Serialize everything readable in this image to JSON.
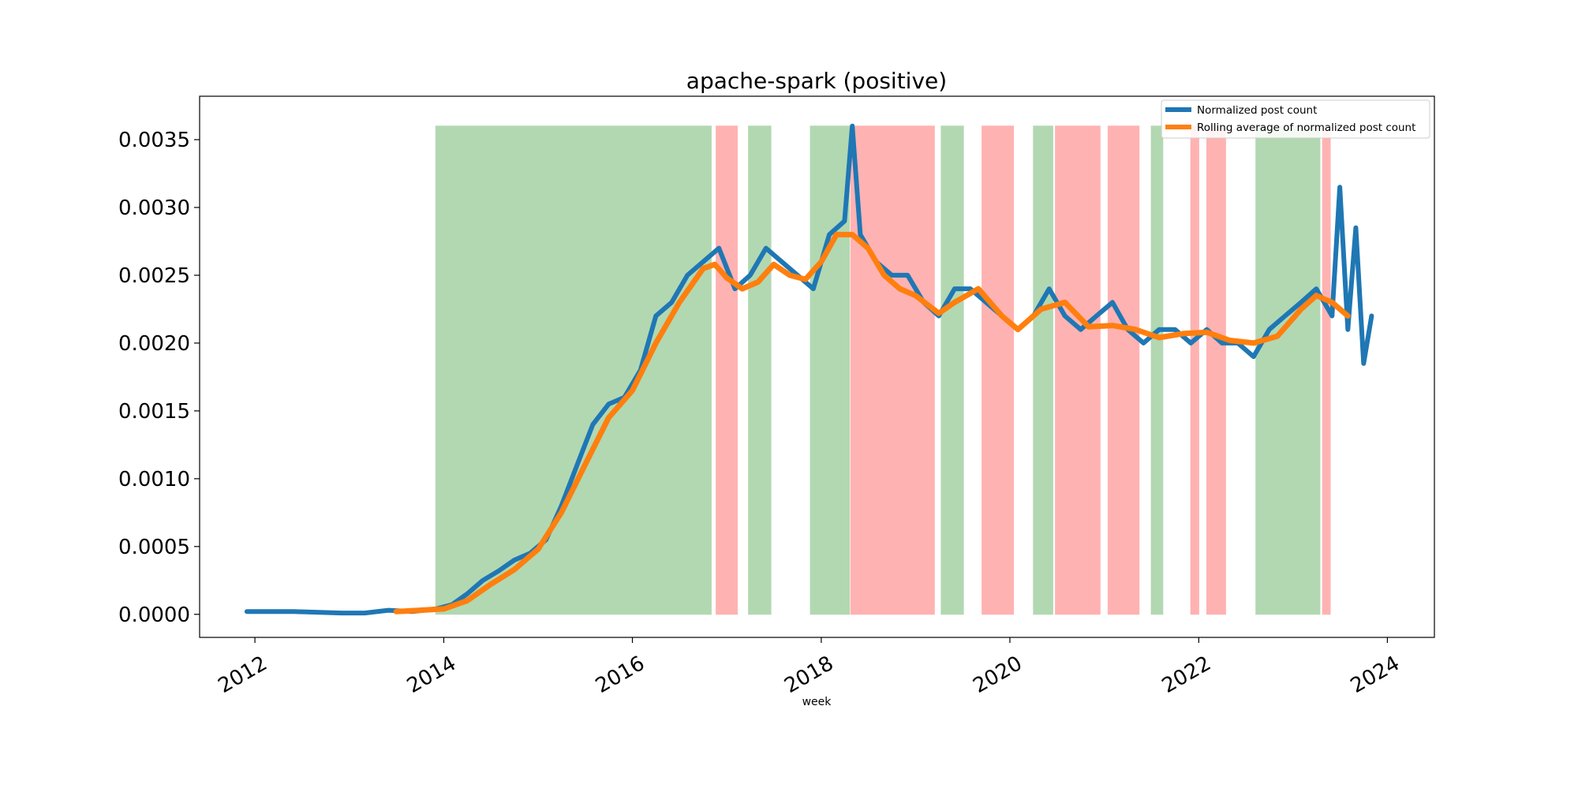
{
  "chart_data": {
    "type": "line",
    "title": "apache-spark (positive)",
    "xlabel": "week",
    "ylabel": "",
    "xlim": [
      "2011-06-01",
      "2024-07-01"
    ],
    "ylim": [
      -0.00017,
      0.00382
    ],
    "x_ticks": [
      "2012",
      "2014",
      "2016",
      "2018",
      "2020",
      "2022",
      "2024"
    ],
    "y_ticks": [
      "0.0000",
      "0.0005",
      "0.0010",
      "0.0015",
      "0.0020",
      "0.0025",
      "0.0030",
      "0.0035"
    ],
    "grid": false,
    "legend_position": "top-right",
    "series": [
      {
        "name": "Normalized post count",
        "color": "#1f77b4",
        "points": [
          [
            "2011-12-01",
            2e-05
          ],
          [
            "2012-06-01",
            2e-05
          ],
          [
            "2012-12-01",
            1e-05
          ],
          [
            "2013-03-01",
            1e-05
          ],
          [
            "2013-06-01",
            3e-05
          ],
          [
            "2013-09-01",
            2e-05
          ],
          [
            "2013-12-01",
            4e-05
          ],
          [
            "2014-02-01",
            7e-05
          ],
          [
            "2014-04-01",
            0.00015
          ],
          [
            "2014-06-01",
            0.00025
          ],
          [
            "2014-08-01",
            0.00032
          ],
          [
            "2014-10-01",
            0.0004
          ],
          [
            "2014-12-01",
            0.00045
          ],
          [
            "2015-02-01",
            0.00055
          ],
          [
            "2015-04-01",
            0.0008
          ],
          [
            "2015-06-01",
            0.0011
          ],
          [
            "2015-08-01",
            0.0014
          ],
          [
            "2015-10-01",
            0.00155
          ],
          [
            "2015-12-01",
            0.0016
          ],
          [
            "2016-02-01",
            0.0018
          ],
          [
            "2016-04-01",
            0.0022
          ],
          [
            "2016-06-01",
            0.0023
          ],
          [
            "2016-08-01",
            0.0025
          ],
          [
            "2016-10-01",
            0.0026
          ],
          [
            "2016-12-01",
            0.0027
          ],
          [
            "2017-02-01",
            0.0024
          ],
          [
            "2017-04-01",
            0.0025
          ],
          [
            "2017-06-01",
            0.0027
          ],
          [
            "2017-08-01",
            0.0026
          ],
          [
            "2017-10-01",
            0.0025
          ],
          [
            "2017-12-01",
            0.0024
          ],
          [
            "2018-02-01",
            0.0028
          ],
          [
            "2018-04-01",
            0.0029
          ],
          [
            "2018-05-01",
            0.0036
          ],
          [
            "2018-06-01",
            0.0028
          ],
          [
            "2018-08-01",
            0.0026
          ],
          [
            "2018-10-01",
            0.0025
          ],
          [
            "2018-12-01",
            0.0025
          ],
          [
            "2019-02-01",
            0.0023
          ],
          [
            "2019-04-01",
            0.0022
          ],
          [
            "2019-06-01",
            0.0024
          ],
          [
            "2019-08-01",
            0.0024
          ],
          [
            "2019-10-01",
            0.0023
          ],
          [
            "2019-12-01",
            0.0022
          ],
          [
            "2020-02-01",
            0.0021
          ],
          [
            "2020-04-01",
            0.0022
          ],
          [
            "2020-06-01",
            0.0024
          ],
          [
            "2020-08-01",
            0.0022
          ],
          [
            "2020-10-01",
            0.0021
          ],
          [
            "2020-12-01",
            0.0022
          ],
          [
            "2021-02-01",
            0.0023
          ],
          [
            "2021-04-01",
            0.0021
          ],
          [
            "2021-06-01",
            0.002
          ],
          [
            "2021-08-01",
            0.0021
          ],
          [
            "2021-10-01",
            0.0021
          ],
          [
            "2021-12-01",
            0.002
          ],
          [
            "2022-02-01",
            0.0021
          ],
          [
            "2022-04-01",
            0.002
          ],
          [
            "2022-06-01",
            0.002
          ],
          [
            "2022-08-01",
            0.0019
          ],
          [
            "2022-10-01",
            0.0021
          ],
          [
            "2022-12-01",
            0.0022
          ],
          [
            "2023-02-01",
            0.0023
          ],
          [
            "2023-04-01",
            0.0024
          ],
          [
            "2023-06-01",
            0.0022
          ],
          [
            "2023-07-01",
            0.00315
          ],
          [
            "2023-08-01",
            0.0021
          ],
          [
            "2023-09-01",
            0.00285
          ],
          [
            "2023-10-01",
            0.00185
          ],
          [
            "2023-11-01",
            0.0022
          ]
        ]
      },
      {
        "name": "Rolling average of normalized post count",
        "color": "#ff7f0e",
        "points": [
          [
            "2013-07-01",
            2e-05
          ],
          [
            "2013-10-01",
            3e-05
          ],
          [
            "2014-01-01",
            4e-05
          ],
          [
            "2014-04-01",
            0.0001
          ],
          [
            "2014-07-01",
            0.00022
          ],
          [
            "2014-10-01",
            0.00033
          ],
          [
            "2015-01-01",
            0.00048
          ],
          [
            "2015-04-01",
            0.00075
          ],
          [
            "2015-07-01",
            0.0011
          ],
          [
            "2015-10-01",
            0.00145
          ],
          [
            "2016-01-01",
            0.00165
          ],
          [
            "2016-04-01",
            0.002
          ],
          [
            "2016-07-01",
            0.0023
          ],
          [
            "2016-10-01",
            0.00255
          ],
          [
            "2016-11-15",
            0.00258
          ],
          [
            "2017-01-01",
            0.00248
          ],
          [
            "2017-03-01",
            0.0024
          ],
          [
            "2017-05-01",
            0.00245
          ],
          [
            "2017-07-01",
            0.00258
          ],
          [
            "2017-09-01",
            0.0025
          ],
          [
            "2017-11-01",
            0.00247
          ],
          [
            "2018-01-01",
            0.0026
          ],
          [
            "2018-03-01",
            0.0028
          ],
          [
            "2018-05-01",
            0.0028
          ],
          [
            "2018-07-01",
            0.0027
          ],
          [
            "2018-09-01",
            0.0025
          ],
          [
            "2018-11-01",
            0.0024
          ],
          [
            "2019-01-01",
            0.00235
          ],
          [
            "2019-04-01",
            0.00222
          ],
          [
            "2019-06-01",
            0.0023
          ],
          [
            "2019-09-01",
            0.0024
          ],
          [
            "2019-12-01",
            0.0022
          ],
          [
            "2020-02-01",
            0.0021
          ],
          [
            "2020-05-01",
            0.00225
          ],
          [
            "2020-08-01",
            0.0023
          ],
          [
            "2020-11-01",
            0.00212
          ],
          [
            "2021-02-01",
            0.00213
          ],
          [
            "2021-05-01",
            0.0021
          ],
          [
            "2021-08-01",
            0.00204
          ],
          [
            "2021-11-01",
            0.00207
          ],
          [
            "2022-02-01",
            0.00208
          ],
          [
            "2022-05-01",
            0.00202
          ],
          [
            "2022-08-01",
            0.002
          ],
          [
            "2022-11-01",
            0.00205
          ],
          [
            "2023-02-01",
            0.00225
          ],
          [
            "2023-04-01",
            0.00235
          ],
          [
            "2023-06-01",
            0.0023
          ],
          [
            "2023-08-01",
            0.0022
          ]
        ]
      }
    ],
    "regions": [
      {
        "start": "2013-12-01",
        "end": "2016-11-01",
        "sentiment": "positive",
        "color": "#b2d8b2"
      },
      {
        "start": "2016-11-20",
        "end": "2017-02-10",
        "sentiment": "negative",
        "color": "#ffb2b2"
      },
      {
        "start": "2017-03-25",
        "end": "2017-06-20",
        "sentiment": "positive",
        "color": "#b2d8b2"
      },
      {
        "start": "2017-11-20",
        "end": "2018-04-20",
        "sentiment": "positive",
        "color": "#b2d8b2"
      },
      {
        "start": "2018-04-25",
        "end": "2019-03-15",
        "sentiment": "negative",
        "color": "#ffb2b2"
      },
      {
        "start": "2019-04-10",
        "end": "2019-07-05",
        "sentiment": "positive",
        "color": "#b2d8b2"
      },
      {
        "start": "2019-09-15",
        "end": "2020-01-15",
        "sentiment": "negative",
        "color": "#ffb2b2"
      },
      {
        "start": "2020-04-01",
        "end": "2020-06-15",
        "sentiment": "positive",
        "color": "#b2d8b2"
      },
      {
        "start": "2020-06-25",
        "end": "2020-12-15",
        "sentiment": "negative",
        "color": "#ffb2b2"
      },
      {
        "start": "2021-01-15",
        "end": "2021-05-15",
        "sentiment": "negative",
        "color": "#ffb2b2"
      },
      {
        "start": "2021-07-01",
        "end": "2021-08-15",
        "sentiment": "positive",
        "color": "#b2d8b2"
      },
      {
        "start": "2021-12-01",
        "end": "2022-01-01",
        "sentiment": "negative",
        "color": "#ffb2b2"
      },
      {
        "start": "2022-02-01",
        "end": "2022-04-15",
        "sentiment": "negative",
        "color": "#ffb2b2"
      },
      {
        "start": "2022-08-10",
        "end": "2023-04-15",
        "sentiment": "positive",
        "color": "#b2d8b2"
      },
      {
        "start": "2023-04-25",
        "end": "2023-05-25",
        "sentiment": "negative",
        "color": "#ffb2b2"
      }
    ]
  }
}
